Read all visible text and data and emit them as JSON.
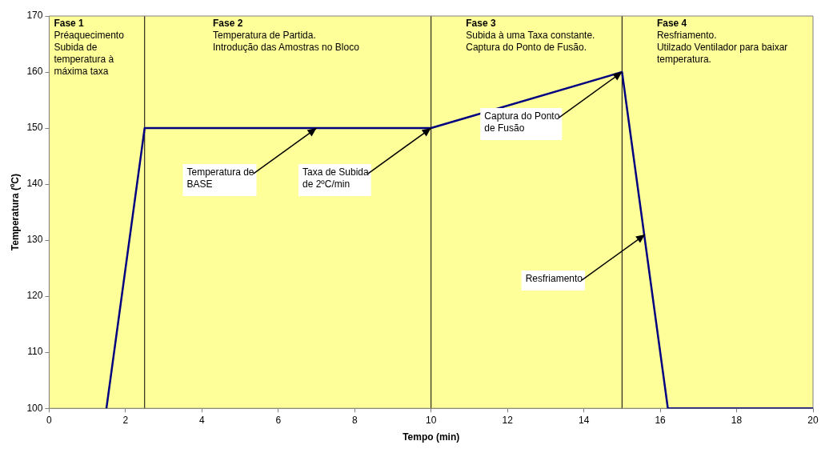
{
  "chart_data": {
    "type": "line",
    "xlabel": "Tempo (min)",
    "ylabel": "Temperatura (ºC)",
    "x": [
      1.5,
      2.5,
      10,
      15,
      16.2,
      20
    ],
    "series": [
      {
        "color": "#000080",
        "values": [
          100,
          150,
          150,
          160,
          100,
          100
        ]
      }
    ],
    "xlim": [
      0,
      20
    ],
    "xticks": [
      0,
      2,
      4,
      6,
      8,
      10,
      12,
      14,
      16,
      18,
      20
    ],
    "ylim": [
      100,
      170
    ],
    "yticks": [
      100,
      110,
      120,
      130,
      140,
      150,
      160,
      170
    ],
    "grid": false,
    "ref_lines": [
      {
        "axis": "x",
        "value": 2.5
      },
      {
        "axis": "x",
        "value": 10
      },
      {
        "axis": "x",
        "value": 15
      }
    ],
    "legend": false,
    "marker": "none",
    "line_style": "solid",
    "bands": [
      {
        "axis": "x",
        "from": 0,
        "to": 2.5,
        "color": "#ffff99",
        "label": "Fase 1\nPréaquecimento\nSubida de temperatura à máxima taxa"
      },
      {
        "axis": "x",
        "from": 2.5,
        "to": 10,
        "color": "#ffff99",
        "label": "Fase 2\nTemperatura de Partida.\nIntrodução das Amostras no Bloco"
      },
      {
        "axis": "x",
        "from": 10,
        "to": 15,
        "color": "#ffff99",
        "label": "Fase 3\nSubida à uma Taxa constante.\nCaptura do Ponto de Fusão."
      },
      {
        "axis": "x",
        "from": 15,
        "to": 20,
        "color": "#ffff99",
        "label": "Fase 4\nResfriamento.\nUtilzado Ventilador para baixar temperatura."
      }
    ],
    "annotations": [
      {
        "text": "Temperatura de BASE",
        "x": 7,
        "y": 150
      },
      {
        "text": "Taxa de Subida de 2ºC/min",
        "x": 10,
        "y": 150
      },
      {
        "text": "Captura do Ponto de Fusão",
        "x": 15,
        "y": 160
      },
      {
        "text": "Resfriamento",
        "x": 15.6,
        "y": 131
      }
    ]
  }
}
